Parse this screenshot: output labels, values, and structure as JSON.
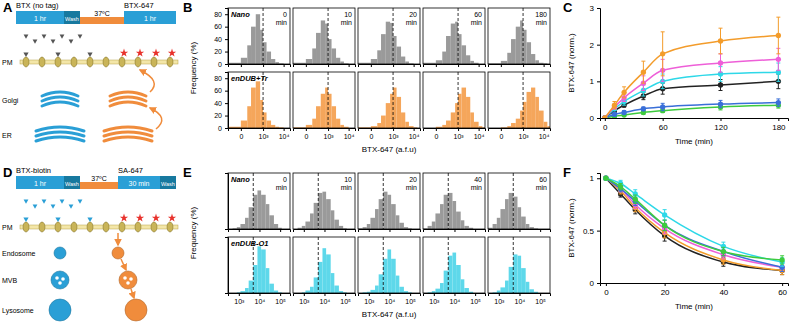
{
  "diagrams": [
    {
      "panel": "A",
      "reagents": [
        "BTX (no tag)",
        "BTX-647"
      ],
      "steps": [
        "1 hr",
        "Wash",
        "37ºC",
        "1 hr"
      ],
      "compartments": [
        "PM",
        "Golgi",
        "ER"
      ]
    },
    {
      "panel": "D",
      "reagents": [
        "BTX-biotin",
        "SA-647"
      ],
      "steps": [
        "1 hr",
        "Wash",
        "37ºC",
        "30 min",
        "Wash"
      ],
      "compartments": [
        "PM",
        "Endosome",
        "MVB",
        "Lysosome"
      ]
    }
  ],
  "chart_data": [
    {
      "type": "histogram",
      "panel": "B",
      "xlabel": "BTX-647 (a.f.u)",
      "ylabel": "Frequency (%)",
      "log": "x",
      "xlim": [
        -300,
        20000
      ],
      "xticks": [
        0,
        {
          "value": 1000,
          "label": "10³"
        },
        {
          "value": 10000,
          "label": "10⁴"
        }
      ],
      "ylim": [
        0,
        90
      ],
      "yticks": [
        0,
        20,
        40,
        60,
        80
      ],
      "bins": [
        -300,
        0,
        100,
        200,
        400,
        700,
        1000,
        1500,
        2500,
        4000,
        6000,
        10000,
        15000,
        20000
      ],
      "facets": [
        "0 min",
        "10 min",
        "20 min",
        "60 min",
        "180 min"
      ],
      "vline": 1000,
      "series": [
        {
          "name": "Nano",
          "color": "#9a9a9a",
          "values": [
            [
              2,
              10,
              30,
              60,
              80,
              55,
              35,
              20,
              8,
              3,
              1,
              0,
              0
            ],
            [
              2,
              8,
              25,
              50,
              70,
              65,
              40,
              25,
              10,
              4,
              1,
              0,
              0
            ],
            [
              2,
              8,
              22,
              48,
              68,
              66,
              45,
              28,
              12,
              4,
              1,
              0,
              0
            ],
            [
              2,
              6,
              20,
              45,
              65,
              68,
              48,
              30,
              14,
              5,
              2,
              0,
              0
            ],
            [
              1,
              5,
              18,
              40,
              60,
              70,
              55,
              35,
              16,
              6,
              2,
              1,
              0
            ]
          ]
        },
        {
          "name": "enDUB+Tr",
          "color": "#f5a65b",
          "values": [
            [
              2,
              12,
              35,
              65,
              75,
              45,
              25,
              12,
              5,
              2,
              1,
              0,
              0
            ],
            [
              1,
              5,
              15,
              35,
              55,
              65,
              55,
              35,
              15,
              5,
              2,
              0,
              0
            ],
            [
              1,
              3,
              8,
              20,
              40,
              55,
              65,
              50,
              25,
              10,
              3,
              1,
              0
            ],
            [
              0,
              2,
              5,
              12,
              25,
              40,
              55,
              65,
              50,
              25,
              10,
              3,
              1
            ],
            [
              0,
              1,
              3,
              8,
              15,
              28,
              42,
              58,
              65,
              50,
              28,
              10,
              3
            ]
          ]
        }
      ]
    },
    {
      "type": "line",
      "panel": "C",
      "xlabel": "Time (min)",
      "ylabel": "BTX-647 (norm.)",
      "marker": "circle",
      "x": [
        0,
        10,
        20,
        40,
        60,
        120,
        180
      ],
      "xlim": [
        -5,
        190
      ],
      "xticks": [
        0,
        60,
        120,
        180
      ],
      "ylim": [
        0,
        3
      ],
      "yticks": [
        0,
        1,
        2,
        3
      ],
      "series": [
        {
          "color": "#222222",
          "values": [
            0,
            0.2,
            0.35,
            0.6,
            0.8,
            0.9,
            1.0
          ],
          "errors": [
            0,
            0.05,
            0.05,
            0.1,
            0.15,
            0.15,
            0.2
          ]
        },
        {
          "color": "#3ecb3e",
          "values": [
            0,
            0.05,
            0.08,
            0.15,
            0.2,
            0.3,
            0.35
          ],
          "errors": [
            0,
            0.03,
            0.03,
            0.05,
            0.05,
            0.08,
            0.08
          ]
        },
        {
          "color": "#3a6fd8",
          "values": [
            0,
            0.1,
            0.15,
            0.25,
            0.3,
            0.38,
            0.42
          ],
          "errors": [
            0,
            0.05,
            0.05,
            0.05,
            0.1,
            0.1,
            0.1
          ]
        },
        {
          "color": "#2ed8e8",
          "values": [
            0,
            0.25,
            0.45,
            0.75,
            1.0,
            1.2,
            1.25
          ],
          "errors": [
            0,
            0.05,
            0.1,
            0.15,
            0.2,
            0.2,
            0.25
          ]
        },
        {
          "color": "#ee5fd8",
          "values": [
            0,
            0.3,
            0.55,
            0.95,
            1.3,
            1.5,
            1.6
          ],
          "errors": [
            0,
            0.05,
            0.1,
            0.2,
            0.3,
            0.25,
            0.3
          ]
        },
        {
          "color": "#f39c2b",
          "values": [
            0,
            0.35,
            0.7,
            1.25,
            1.75,
            2.1,
            2.25
          ],
          "errors": [
            0,
            0.1,
            0.15,
            0.3,
            0.6,
            0.35,
            0.5
          ]
        }
      ]
    },
    {
      "type": "histogram",
      "panel": "E",
      "xlabel": "BTX-647 (a.f.u)",
      "ylabel": "Frequency (%)",
      "log": "x",
      "tick_labels": "x",
      "xlim": [
        300,
        300000
      ],
      "xticks": [
        {
          "value": 1000,
          "label": "10³"
        },
        {
          "value": 10000,
          "label": "10⁴"
        },
        {
          "value": 100000,
          "label": "10⁵"
        }
      ],
      "ylim": [
        0,
        90
      ],
      "bins": [
        300,
        500,
        800,
        1200,
        2000,
        3000,
        5000,
        8000,
        12000,
        20000,
        30000,
        50000,
        80000,
        120000,
        200000,
        300000
      ],
      "facets": [
        "0 min",
        "10 min",
        "20 min",
        "40 min",
        "60 min"
      ],
      "vline": 5000,
      "series": [
        {
          "name": "Nano",
          "color": "#9a9a9a",
          "values": [
            [
              0,
              1,
              3,
              8,
              18,
              35,
              55,
              62,
              55,
              40,
              22,
              8,
              2,
              0,
              0
            ],
            [
              0,
              2,
              5,
              12,
              25,
              42,
              58,
              60,
              48,
              30,
              15,
              5,
              1,
              0,
              0
            ],
            [
              1,
              3,
              8,
              18,
              32,
              48,
              60,
              55,
              40,
              22,
              10,
              3,
              1,
              0,
              0
            ],
            [
              1,
              5,
              12,
              25,
              40,
              55,
              58,
              45,
              28,
              14,
              5,
              2,
              0,
              0,
              0
            ],
            [
              2,
              8,
              18,
              32,
              48,
              58,
              52,
              35,
              20,
              8,
              3,
              1,
              0,
              0,
              0
            ]
          ]
        },
        {
          "name": "enDUB-O1",
          "color": "#5ed8ea",
          "values": [
            [
              0,
              0,
              1,
              3,
              8,
              20,
              45,
              75,
              70,
              40,
              15,
              4,
              1,
              0,
              0
            ],
            [
              0,
              0,
              1,
              4,
              10,
              25,
              50,
              72,
              62,
              32,
              12,
              3,
              1,
              0,
              0
            ],
            [
              0,
              1,
              2,
              5,
              12,
              30,
              55,
              70,
              55,
              28,
              10,
              3,
              1,
              0,
              0
            ],
            [
              0,
              1,
              3,
              7,
              16,
              36,
              60,
              65,
              45,
              22,
              8,
              2,
              0,
              0,
              0
            ],
            [
              0,
              1,
              4,
              9,
              20,
              42,
              62,
              60,
              40,
              18,
              6,
              2,
              0,
              0,
              0
            ]
          ]
        }
      ]
    },
    {
      "type": "line",
      "panel": "F",
      "xlabel": "Time (min)",
      "ylabel": "BTX-647 (norm.)",
      "marker": "circle",
      "x": [
        0,
        5,
        10,
        20,
        40,
        60
      ],
      "xlim": [
        -2,
        62
      ],
      "xticks": [
        0,
        20,
        40,
        60
      ],
      "ylim": [
        0,
        1.05
      ],
      "yticks": [
        0,
        0.5,
        1
      ],
      "series": [
        {
          "color": "#222222",
          "values": [
            1,
            0.85,
            0.7,
            0.45,
            0.2,
            0.12
          ],
          "errors": [
            0,
            0.03,
            0.04,
            0.05,
            0.04,
            0.04
          ]
        },
        {
          "color": "#f39c2b",
          "values": [
            1,
            0.88,
            0.72,
            0.48,
            0.22,
            0.12
          ],
          "errors": [
            0,
            0.03,
            0.04,
            0.05,
            0.04,
            0.04
          ]
        },
        {
          "color": "#ee5fd8",
          "values": [
            1,
            0.9,
            0.75,
            0.52,
            0.27,
            0.15
          ],
          "errors": [
            0,
            0.03,
            0.04,
            0.05,
            0.04,
            0.04
          ]
        },
        {
          "color": "#3a6fd8",
          "values": [
            1,
            0.9,
            0.78,
            0.55,
            0.3,
            0.15
          ],
          "errors": [
            0,
            0.03,
            0.04,
            0.05,
            0.04,
            0.04
          ]
        },
        {
          "color": "#2ed8e8",
          "values": [
            1,
            0.95,
            0.85,
            0.65,
            0.35,
            0.2
          ],
          "errors": [
            0,
            0.03,
            0.04,
            0.05,
            0.04,
            0.04
          ]
        },
        {
          "color": "#3ecb3e",
          "values": [
            1,
            0.92,
            0.8,
            0.55,
            0.3,
            0.22
          ],
          "errors": [
            0,
            0.03,
            0.04,
            0.05,
            0.04,
            0.04
          ]
        }
      ]
    }
  ]
}
